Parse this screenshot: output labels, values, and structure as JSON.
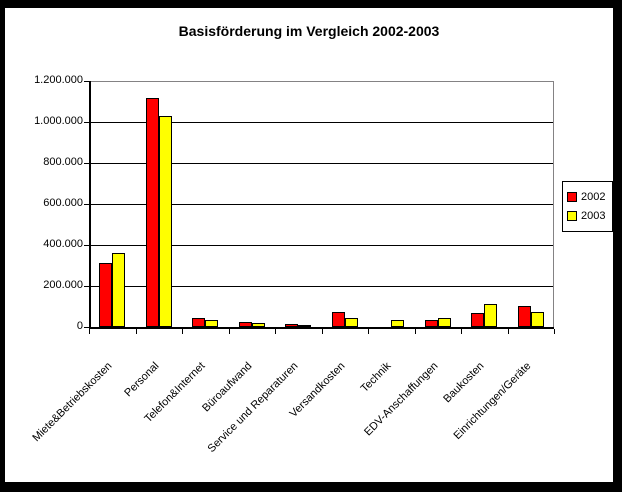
{
  "chart_data": {
    "type": "bar",
    "title": "Basisförderung im Vergleich 2002-2003",
    "categories": [
      "Miete&Betriebskosten",
      "Personal",
      "Telefon&Internet",
      "Büroaufwand",
      "Service und Reparaturen",
      "Versandkosten",
      "Technik",
      "EDV-Anschaffungen",
      "Baukosten",
      "Einrichtungen/Geräte"
    ],
    "series": [
      {
        "name": "2002",
        "color": "#FF0000",
        "values": [
          310000,
          1115000,
          45000,
          25000,
          15000,
          75000,
          0,
          35000,
          70000,
          100000
        ]
      },
      {
        "name": "2003",
        "color": "#FFFF00",
        "values": [
          360000,
          1030000,
          35000,
          20000,
          5000,
          45000,
          35000,
          45000,
          110000,
          75000
        ]
      }
    ],
    "ylim": [
      0,
      1200000
    ],
    "ytick_interval": 200000,
    "ytick_labels": [
      "1.200.000",
      "1.000.000",
      "800.000",
      "600.000",
      "400.000",
      "200.000",
      "0"
    ],
    "xlabel": "",
    "ylabel": "",
    "grid": true,
    "legend_position": "right",
    "plot_border_color": "#848284",
    "axis_color": "#000000",
    "background_color": "#FFFFFF",
    "frame_color": "#000000"
  }
}
